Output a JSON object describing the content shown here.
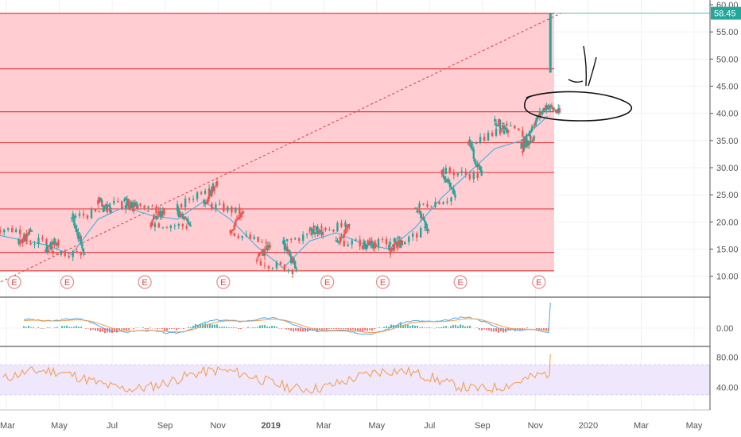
{
  "chart_data": {
    "type": "candlestick",
    "price_axis": {
      "ticks": [
        10,
        15,
        20,
        25,
        30,
        35,
        40,
        45,
        50,
        55,
        60
      ],
      "tick_labels": [
        "10.00",
        "15.00",
        "20.00",
        "25.00",
        "30.00",
        "35.00",
        "40.00",
        "45.00",
        "50.00",
        "55.00",
        "60.00"
      ],
      "range": [
        8.2,
        60.0
      ]
    },
    "last_price": 58.45,
    "last_price_label": "58.45",
    "time_axis": {
      "labels": [
        "Mar",
        "May",
        "Jul",
        "Sep",
        "Nov",
        "2019",
        "Mar",
        "May",
        "Jul",
        "Sep",
        "Nov",
        "2020",
        "Mar",
        "May"
      ],
      "bold_label": "2019",
      "month_index_range": [
        0,
        27.7
      ]
    },
    "horizontal_levels": [
      11.0,
      14.4,
      22.4,
      29.1,
      34.6,
      40.3,
      48.2,
      58.45
    ],
    "trendline": {
      "from": [
        "2018-02",
        8.2
      ],
      "to": [
        "2019-11",
        58.45
      ],
      "style": "dashed"
    },
    "candles": [
      {
        "t": "2018-02",
        "o": 19.0,
        "c": 18.3
      },
      {
        "t": "2018-03",
        "o": 18.3,
        "c": 16.0
      },
      {
        "t": "2018-03",
        "o": 16.0,
        "c": 16.6
      },
      {
        "t": "2018-04",
        "o": 16.6,
        "c": 14.8
      },
      {
        "t": "2018-04",
        "o": 14.8,
        "c": 14.1
      },
      {
        "t": "2018-05",
        "o": 14.1,
        "c": 20.8
      },
      {
        "t": "2018-05",
        "o": 20.8,
        "c": 22.0
      },
      {
        "t": "2018-06",
        "o": 22.0,
        "c": 24.0
      },
      {
        "t": "2018-06",
        "o": 24.0,
        "c": 22.5
      },
      {
        "t": "2018-07",
        "o": 22.5,
        "c": 23.8
      },
      {
        "t": "2018-07",
        "o": 23.8,
        "c": 22.3
      },
      {
        "t": "2018-08",
        "o": 22.3,
        "c": 19.8
      },
      {
        "t": "2018-08",
        "o": 19.8,
        "c": 19.2
      },
      {
        "t": "2018-09",
        "o": 19.2,
        "c": 22.0
      },
      {
        "t": "2018-09",
        "o": 22.0,
        "c": 27.5
      },
      {
        "t": "2018-10",
        "o": 27.5,
        "c": 23.5
      },
      {
        "t": "2018-10",
        "o": 23.5,
        "c": 21.8
      },
      {
        "t": "2018-11",
        "o": 21.8,
        "c": 18.5
      },
      {
        "t": "2018-11",
        "o": 18.5,
        "c": 15.8
      },
      {
        "t": "2018-12",
        "o": 15.8,
        "c": 13.0
      },
      {
        "t": "2018-12",
        "o": 13.0,
        "c": 11.2
      },
      {
        "t": "2019-01",
        "o": 11.2,
        "c": 16.0
      },
      {
        "t": "2019-01",
        "o": 16.0,
        "c": 18.2
      },
      {
        "t": "2019-02",
        "o": 18.2,
        "c": 18.6
      },
      {
        "t": "2019-02",
        "o": 18.6,
        "c": 19.2
      },
      {
        "t": "2019-03",
        "o": 19.2,
        "c": 16.4
      },
      {
        "t": "2019-03",
        "o": 16.4,
        "c": 16.0
      },
      {
        "t": "2019-04",
        "o": 16.0,
        "c": 15.6
      },
      {
        "t": "2019-04",
        "o": 15.6,
        "c": 16.6
      },
      {
        "t": "2019-05",
        "o": 16.6,
        "c": 14.8
      },
      {
        "t": "2019-05",
        "o": 14.8,
        "c": 18.5
      },
      {
        "t": "2019-06",
        "o": 18.5,
        "c": 22.5
      },
      {
        "t": "2019-06",
        "o": 22.5,
        "c": 24.5
      },
      {
        "t": "2019-07",
        "o": 24.5,
        "c": 29.5
      },
      {
        "t": "2019-07",
        "o": 29.5,
        "c": 28.5
      },
      {
        "t": "2019-08",
        "o": 28.5,
        "c": 34.5
      },
      {
        "t": "2019-08",
        "o": 34.5,
        "c": 37.0
      },
      {
        "t": "2019-09",
        "o": 37.0,
        "c": 38.5
      },
      {
        "t": "2019-09",
        "o": 38.5,
        "c": 35.5
      },
      {
        "t": "2019-10",
        "o": 35.5,
        "c": 33.5
      },
      {
        "t": "2019-10",
        "o": 33.5,
        "c": 38.0
      },
      {
        "t": "2019-10",
        "o": 38.0,
        "c": 41.5
      },
      {
        "t": "2019-11",
        "o": 41.5,
        "c": 40.0
      },
      {
        "t": "2019-11",
        "o": 40.0,
        "c": 58.45
      }
    ],
    "moving_average": [
      [
        "2018-02",
        17.8
      ],
      [
        "2018-04",
        15.8
      ],
      [
        "2018-05",
        14.0
      ],
      [
        "2018-06",
        20.5
      ],
      [
        "2018-07",
        22.8
      ],
      [
        "2018-08",
        21.2
      ],
      [
        "2018-09",
        20.5
      ],
      [
        "2018-10",
        23.8
      ],
      [
        "2018-11",
        20.5
      ],
      [
        "2018-12",
        15.5
      ],
      [
        "2019-01",
        11.5
      ],
      [
        "2019-02",
        16.5
      ],
      [
        "2019-03",
        18.0
      ],
      [
        "2019-04",
        16.0
      ],
      [
        "2019-05",
        15.0
      ],
      [
        "2019-06",
        19.0
      ],
      [
        "2019-07",
        24.5
      ],
      [
        "2019-08",
        29.0
      ],
      [
        "2019-09",
        33.5
      ],
      [
        "2019-10",
        35.0
      ],
      [
        "2019-11",
        39.5
      ]
    ],
    "earnings_markers": {
      "label": "E",
      "dates": [
        "2018-03-10",
        "2018-05-10",
        "2018-08-08",
        "2018-11-07",
        "2019-03-05",
        "2019-05-08",
        "2019-08-06",
        "2019-11-05"
      ]
    },
    "macd_panel": {
      "ticks": [
        0.0
      ],
      "tick_labels": [
        "0.00"
      ]
    },
    "rsi_panel": {
      "ticks": [
        80,
        40
      ],
      "tick_labels": [
        "80.00",
        "40.00"
      ],
      "band": [
        30,
        70
      ]
    }
  },
  "annotations": [
    "hand-drawn ellipse",
    "hand-drawn arrow marks"
  ],
  "colors": {
    "up": "#26a69a",
    "down": "#ef5350",
    "ma": "#4fb3e0",
    "zone_fill": "#ffcdd2",
    "level_line": "#e04545",
    "trendline": "#e04545",
    "macd_line": "#4aa8e8",
    "signal_line": "#f39c4a",
    "rsi_line": "#f39c4a",
    "rsi_band": "#efe7fb",
    "price_label_bg": "#26a69a"
  }
}
